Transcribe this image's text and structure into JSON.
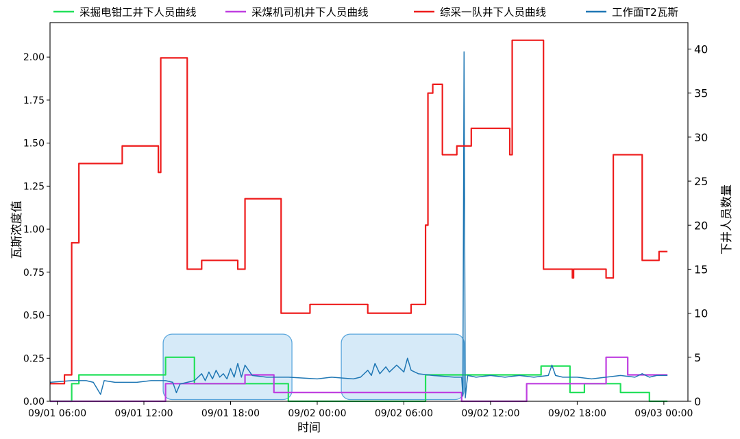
{
  "chart_data": {
    "type": "line",
    "xlabel": "时间",
    "ylabel": "瓦斯浓度值",
    "y2label": "下井人员数量",
    "x_range": [
      "2024-09-01T05:30",
      "2024-09-03T01:40"
    ],
    "x_ticks": [
      {
        "t": "2024-09-01T06:00",
        "label": "09/01 06:00"
      },
      {
        "t": "2024-09-01T12:00",
        "label": "09/01 12:00"
      },
      {
        "t": "2024-09-01T18:00",
        "label": "09/01 18:00"
      },
      {
        "t": "2024-09-02T00:00",
        "label": "09/02 00:00"
      },
      {
        "t": "2024-09-02T06:00",
        "label": "09/02 06:00"
      },
      {
        "t": "2024-09-02T12:00",
        "label": "09/02 12:00"
      },
      {
        "t": "2024-09-02T18:00",
        "label": "09/02 18:00"
      },
      {
        "t": "2024-09-03T00:00",
        "label": "09/03 00:00"
      }
    ],
    "y_left": {
      "min": 0,
      "max": 2.2,
      "ticks": [
        "0.00",
        "0.25",
        "0.50",
        "0.75",
        "1.00",
        "1.25",
        "1.50",
        "1.75",
        "2.00"
      ]
    },
    "y_right": {
      "min": 0,
      "max": 43,
      "ticks": [
        "0",
        "5",
        "10",
        "15",
        "20",
        "25",
        "30",
        "35",
        "40"
      ]
    },
    "legend": {
      "placement": "top"
    },
    "series": [
      {
        "name": "采掘电钳工井下人员曲线",
        "axis": "right",
        "color": "#22e05a",
        "step": true,
        "points": [
          [
            "2024-09-01T05:30",
            0
          ],
          [
            "2024-09-01T07:00",
            0
          ],
          [
            "2024-09-01T07:00",
            2
          ],
          [
            "2024-09-01T07:30",
            2
          ],
          [
            "2024-09-01T07:30",
            3
          ],
          [
            "2024-09-01T13:30",
            3
          ],
          [
            "2024-09-01T13:30",
            5
          ],
          [
            "2024-09-01T15:30",
            5
          ],
          [
            "2024-09-01T15:30",
            2
          ],
          [
            "2024-09-01T22:00",
            2
          ],
          [
            "2024-09-01T22:00",
            0
          ],
          [
            "2024-09-02T07:30",
            0
          ],
          [
            "2024-09-02T07:30",
            3
          ],
          [
            "2024-09-02T15:30",
            3
          ],
          [
            "2024-09-02T15:30",
            4
          ],
          [
            "2024-09-02T17:30",
            4
          ],
          [
            "2024-09-02T17:30",
            1
          ],
          [
            "2024-09-02T18:30",
            1
          ],
          [
            "2024-09-02T18:30",
            2
          ],
          [
            "2024-09-02T21:00",
            2
          ],
          [
            "2024-09-02T21:00",
            1
          ],
          [
            "2024-09-02T23:00",
            1
          ],
          [
            "2024-09-02T23:00",
            0
          ],
          [
            "2024-09-03T00:15",
            0
          ]
        ]
      },
      {
        "name": "采煤机司机井下人员曲线",
        "axis": "right",
        "color": "#bf3fe0",
        "step": true,
        "points": [
          [
            "2024-09-01T05:30",
            0
          ],
          [
            "2024-09-01T13:30",
            0
          ],
          [
            "2024-09-01T13:30",
            2
          ],
          [
            "2024-09-01T19:00",
            2
          ],
          [
            "2024-09-01T19:00",
            3
          ],
          [
            "2024-09-01T21:00",
            3
          ],
          [
            "2024-09-01T21:00",
            1
          ],
          [
            "2024-09-02T10:00",
            1
          ],
          [
            "2024-09-02T10:00",
            0
          ],
          [
            "2024-09-02T14:30",
            0
          ],
          [
            "2024-09-02T14:30",
            2
          ],
          [
            "2024-09-02T20:00",
            2
          ],
          [
            "2024-09-02T20:00",
            5
          ],
          [
            "2024-09-02T21:30",
            5
          ],
          [
            "2024-09-02T21:30",
            3
          ],
          [
            "2024-09-03T00:15",
            3
          ]
        ]
      },
      {
        "name": "综采一队井下人员曲线",
        "axis": "right",
        "color": "#ee1c1c",
        "step": true,
        "points": [
          [
            "2024-09-01T05:30",
            2
          ],
          [
            "2024-09-01T06:30",
            2
          ],
          [
            "2024-09-01T06:30",
            3
          ],
          [
            "2024-09-01T07:00",
            3
          ],
          [
            "2024-09-01T07:00",
            18
          ],
          [
            "2024-09-01T07:30",
            18
          ],
          [
            "2024-09-01T07:30",
            27
          ],
          [
            "2024-09-01T10:30",
            27
          ],
          [
            "2024-09-01T10:30",
            29
          ],
          [
            "2024-09-01T13:00",
            29
          ],
          [
            "2024-09-01T13:00",
            26
          ],
          [
            "2024-09-01T13:10",
            26
          ],
          [
            "2024-09-01T13:10",
            39
          ],
          [
            "2024-09-01T15:00",
            39
          ],
          [
            "2024-09-01T15:00",
            15
          ],
          [
            "2024-09-01T16:00",
            15
          ],
          [
            "2024-09-01T16:00",
            16
          ],
          [
            "2024-09-01T18:30",
            16
          ],
          [
            "2024-09-01T18:30",
            15
          ],
          [
            "2024-09-01T19:00",
            15
          ],
          [
            "2024-09-01T19:00",
            23
          ],
          [
            "2024-09-01T21:30",
            23
          ],
          [
            "2024-09-01T21:30",
            10
          ],
          [
            "2024-09-01T23:30",
            10
          ],
          [
            "2024-09-01T23:30",
            11
          ],
          [
            "2024-09-02T03:30",
            11
          ],
          [
            "2024-09-02T03:30",
            10
          ],
          [
            "2024-09-02T06:30",
            10
          ],
          [
            "2024-09-02T06:30",
            11
          ],
          [
            "2024-09-02T07:30",
            11
          ],
          [
            "2024-09-02T07:30",
            20
          ],
          [
            "2024-09-02T07:40",
            20
          ],
          [
            "2024-09-02T07:40",
            35
          ],
          [
            "2024-09-02T08:00",
            35
          ],
          [
            "2024-09-02T08:00",
            36
          ],
          [
            "2024-09-02T08:40",
            36
          ],
          [
            "2024-09-02T08:40",
            28
          ],
          [
            "2024-09-02T09:40",
            28
          ],
          [
            "2024-09-02T09:40",
            29
          ],
          [
            "2024-09-02T10:40",
            29
          ],
          [
            "2024-09-02T10:40",
            31
          ],
          [
            "2024-09-02T13:20",
            31
          ],
          [
            "2024-09-02T13:20",
            28
          ],
          [
            "2024-09-02T13:30",
            28
          ],
          [
            "2024-09-02T13:30",
            41
          ],
          [
            "2024-09-02T15:40",
            41
          ],
          [
            "2024-09-02T15:40",
            15
          ],
          [
            "2024-09-02T17:40",
            15
          ],
          [
            "2024-09-02T17:40",
            14
          ],
          [
            "2024-09-02T17:45",
            14
          ],
          [
            "2024-09-02T17:45",
            15
          ],
          [
            "2024-09-02T20:00",
            15
          ],
          [
            "2024-09-02T20:00",
            14
          ],
          [
            "2024-09-02T20:30",
            14
          ],
          [
            "2024-09-02T20:30",
            28
          ],
          [
            "2024-09-02T22:30",
            28
          ],
          [
            "2024-09-02T22:30",
            16
          ],
          [
            "2024-09-02T23:40",
            16
          ],
          [
            "2024-09-02T23:40",
            17
          ],
          [
            "2024-09-03T00:15",
            17
          ]
        ]
      },
      {
        "name": "工作面T2瓦斯",
        "axis": "left",
        "color": "#1f77b4",
        "step": false,
        "points": [
          [
            "2024-09-01T05:30",
            0.11
          ],
          [
            "2024-09-01T07:00",
            0.12
          ],
          [
            "2024-09-01T08:00",
            0.12
          ],
          [
            "2024-09-01T08:30",
            0.11
          ],
          [
            "2024-09-01T09:00",
            0.04
          ],
          [
            "2024-09-01T09:15",
            0.12
          ],
          [
            "2024-09-01T10:00",
            0.11
          ],
          [
            "2024-09-01T11:30",
            0.11
          ],
          [
            "2024-09-01T12:30",
            0.12
          ],
          [
            "2024-09-01T13:30",
            0.12
          ],
          [
            "2024-09-01T14:00",
            0.11
          ],
          [
            "2024-09-01T14:15",
            0.05
          ],
          [
            "2024-09-01T14:30",
            0.1
          ],
          [
            "2024-09-01T15:00",
            0.11
          ],
          [
            "2024-09-01T15:30",
            0.12
          ],
          [
            "2024-09-01T16:00",
            0.16
          ],
          [
            "2024-09-01T16:15",
            0.12
          ],
          [
            "2024-09-01T16:30",
            0.17
          ],
          [
            "2024-09-01T16:45",
            0.13
          ],
          [
            "2024-09-01T17:00",
            0.18
          ],
          [
            "2024-09-01T17:15",
            0.14
          ],
          [
            "2024-09-01T17:30",
            0.16
          ],
          [
            "2024-09-01T17:45",
            0.13
          ],
          [
            "2024-09-01T18:00",
            0.19
          ],
          [
            "2024-09-01T18:15",
            0.14
          ],
          [
            "2024-09-01T18:30",
            0.22
          ],
          [
            "2024-09-01T18:45",
            0.14
          ],
          [
            "2024-09-01T19:00",
            0.21
          ],
          [
            "2024-09-01T19:30",
            0.15
          ],
          [
            "2024-09-01T20:30",
            0.14
          ],
          [
            "2024-09-01T22:00",
            0.14
          ],
          [
            "2024-09-02T00:00",
            0.13
          ],
          [
            "2024-09-02T01:00",
            0.14
          ],
          [
            "2024-09-02T02:30",
            0.13
          ],
          [
            "2024-09-02T03:00",
            0.14
          ],
          [
            "2024-09-02T03:30",
            0.18
          ],
          [
            "2024-09-02T03:45",
            0.15
          ],
          [
            "2024-09-02T04:00",
            0.22
          ],
          [
            "2024-09-02T04:20",
            0.16
          ],
          [
            "2024-09-02T04:45",
            0.2
          ],
          [
            "2024-09-02T05:00",
            0.17
          ],
          [
            "2024-09-02T05:30",
            0.21
          ],
          [
            "2024-09-02T06:00",
            0.17
          ],
          [
            "2024-09-02T06:15",
            0.25
          ],
          [
            "2024-09-02T06:30",
            0.18
          ],
          [
            "2024-09-02T07:00",
            0.16
          ],
          [
            "2024-09-02T08:00",
            0.15
          ],
          [
            "2024-09-02T09:30",
            0.14
          ],
          [
            "2024-09-02T10:00",
            0.14
          ],
          [
            "2024-09-02T10:05",
            0.03
          ],
          [
            "2024-09-02T10:10",
            2.03
          ],
          [
            "2024-09-02T10:15",
            0.02
          ],
          [
            "2024-09-02T10:25",
            0.15
          ],
          [
            "2024-09-02T11:00",
            0.14
          ],
          [
            "2024-09-02T12:00",
            0.15
          ],
          [
            "2024-09-02T13:00",
            0.14
          ],
          [
            "2024-09-02T14:00",
            0.15
          ],
          [
            "2024-09-02T15:00",
            0.14
          ],
          [
            "2024-09-02T16:00",
            0.15
          ],
          [
            "2024-09-02T16:15",
            0.21
          ],
          [
            "2024-09-02T16:30",
            0.15
          ],
          [
            "2024-09-02T17:00",
            0.14
          ],
          [
            "2024-09-02T18:00",
            0.14
          ],
          [
            "2024-09-02T19:00",
            0.13
          ],
          [
            "2024-09-02T20:00",
            0.14
          ],
          [
            "2024-09-02T21:00",
            0.15
          ],
          [
            "2024-09-02T22:00",
            0.14
          ],
          [
            "2024-09-02T22:30",
            0.16
          ],
          [
            "2024-09-02T23:00",
            0.14
          ],
          [
            "2024-09-02T23:30",
            0.15
          ],
          [
            "2024-09-03T00:15",
            0.15
          ]
        ]
      }
    ],
    "highlight_regions": [
      {
        "x_start": "2024-09-01T13:20",
        "x_end": "2024-09-01T22:15",
        "y_start": 0.01,
        "y_end": 0.39
      },
      {
        "x_start": "2024-09-02T01:40",
        "x_end": "2024-09-02T10:10",
        "y_start": 0.01,
        "y_end": 0.39
      }
    ]
  },
  "colors": {
    "axis": "#000000",
    "highlight_fill": "#cfe6f7",
    "highlight_stroke": "#5aa6dc"
  }
}
